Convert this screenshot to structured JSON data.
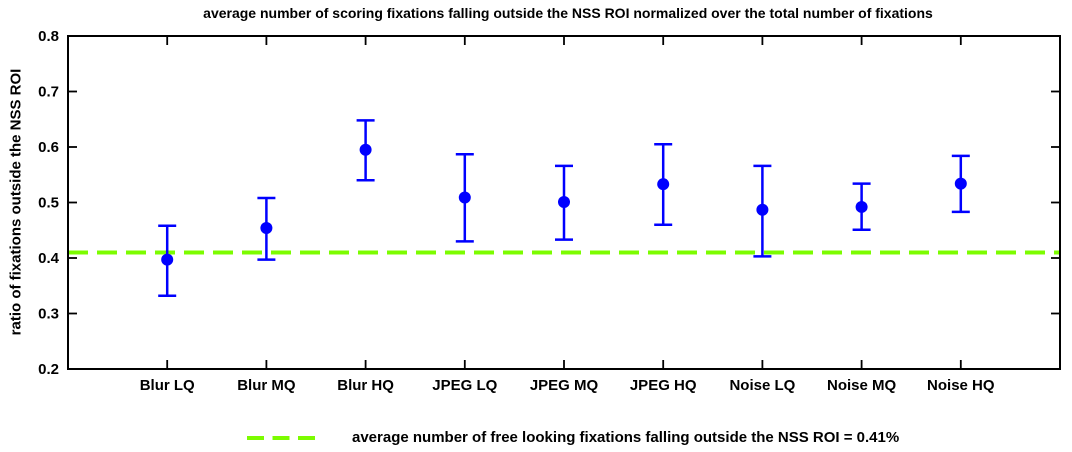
{
  "chart_data": {
    "type": "scatter",
    "title": "average number of scoring fixations falling outside the NSS ROI normalized over the total number of fixations",
    "xlabel": "",
    "ylabel": "ratio of fixations outside the NSS ROI",
    "categories": [
      "Blur LQ",
      "Blur MQ",
      "Blur HQ",
      "JPEG LQ",
      "JPEG MQ",
      "JPEG HQ",
      "Noise LQ",
      "Noise MQ",
      "Noise HQ"
    ],
    "series": [
      {
        "name": "scoring fixations outside NSS ROI",
        "marker": "filled-circle-with-error-bars",
        "color": "#0000FF",
        "values": [
          0.397,
          0.454,
          0.595,
          0.509,
          0.501,
          0.533,
          0.487,
          0.492,
          0.534
        ],
        "err_upper": [
          0.458,
          0.508,
          0.648,
          0.587,
          0.566,
          0.605,
          0.566,
          0.534,
          0.584
        ],
        "err_lower": [
          0.332,
          0.397,
          0.54,
          0.43,
          0.433,
          0.46,
          0.403,
          0.451,
          0.483
        ]
      }
    ],
    "reference_line": {
      "value": 0.41,
      "style": "dashed",
      "color": "#7CFC00",
      "label": "average number of free looking fixations falling outside the NSS ROI = 0.41%"
    },
    "ylim": [
      0.2,
      0.8
    ],
    "yticks": [
      0.2,
      0.3,
      0.4,
      0.5,
      0.6,
      0.7,
      0.8
    ],
    "ytick_labels": [
      "0.2",
      "0.3",
      "0.4",
      "0.5",
      "0.6",
      "0.7",
      "0.8"
    ],
    "xlim": [
      0,
      10
    ],
    "grid": false,
    "legend_position": "bottom",
    "axis_color": "#000000",
    "background_color": "#FFFFFF"
  }
}
